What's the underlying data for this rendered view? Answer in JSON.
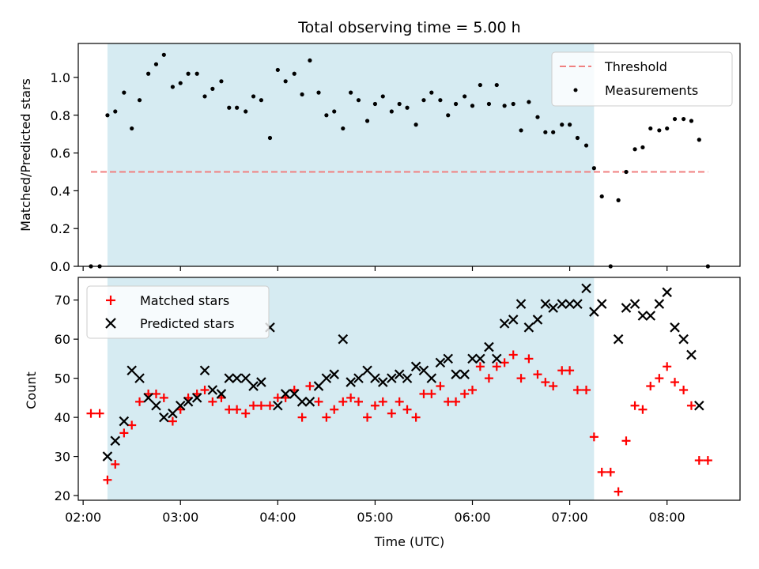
{
  "chart_data": [
    {
      "type": "scatter",
      "title": "Total observing time = 5.00 h",
      "xlabel": "",
      "ylabel": "Matched/Predicted stars",
      "x_unit": "hours UTC",
      "xlim": [
        1.95,
        8.75
      ],
      "ylim": [
        0.0,
        1.18
      ],
      "yticks": [
        0.0,
        0.2,
        0.4,
        0.6,
        0.8,
        1.0
      ],
      "ytick_labels": [
        "0.0",
        "0.2",
        "0.4",
        "0.6",
        "0.8",
        "1.0"
      ],
      "shaded_interval": {
        "x": [
          2.25,
          7.25
        ],
        "color": "#add8e6"
      },
      "threshold": {
        "name": "Threshold",
        "y": 0.5,
        "x": [
          2.08,
          8.42
        ],
        "color": "#f08080",
        "style": "dashed"
      },
      "legend": {
        "placement": "upper right",
        "entries": [
          "Threshold",
          "Measurements"
        ]
      },
      "series": [
        {
          "name": "Measurements",
          "marker": "dot",
          "color": "#000000",
          "x": [
            2.08,
            2.17,
            2.25,
            2.33,
            2.42,
            2.5,
            2.58,
            2.67,
            2.75,
            2.83,
            2.92,
            3.0,
            3.08,
            3.17,
            3.25,
            3.33,
            3.42,
            3.5,
            3.58,
            3.67,
            3.75,
            3.83,
            3.92,
            4.0,
            4.08,
            4.17,
            4.25,
            4.33,
            4.42,
            4.5,
            4.58,
            4.67,
            4.75,
            4.83,
            4.92,
            5.0,
            5.08,
            5.17,
            5.25,
            5.33,
            5.42,
            5.5,
            5.58,
            5.67,
            5.75,
            5.83,
            5.92,
            6.0,
            6.08,
            6.17,
            6.25,
            6.33,
            6.42,
            6.5,
            6.58,
            6.67,
            6.75,
            6.83,
            6.92,
            7.0,
            7.08,
            7.17,
            7.25,
            7.33,
            7.42,
            7.5,
            7.58,
            7.67,
            7.75,
            7.83,
            7.92,
            8.0,
            8.08,
            8.17,
            8.25,
            8.33,
            8.42
          ],
          "y": [
            0.0,
            0.0,
            0.8,
            0.82,
            0.92,
            0.73,
            0.88,
            1.02,
            1.07,
            1.12,
            0.95,
            0.97,
            1.02,
            1.02,
            0.9,
            0.94,
            0.98,
            0.84,
            0.84,
            0.82,
            0.9,
            0.88,
            0.68,
            1.04,
            0.98,
            1.02,
            0.91,
            1.09,
            0.92,
            0.8,
            0.82,
            0.73,
            0.92,
            0.88,
            0.77,
            0.86,
            0.9,
            0.82,
            0.86,
            0.84,
            0.75,
            0.88,
            0.92,
            0.88,
            0.8,
            0.86,
            0.9,
            0.85,
            0.96,
            0.86,
            0.96,
            0.85,
            0.86,
            0.72,
            0.87,
            0.79,
            0.71,
            0.71,
            0.75,
            0.75,
            0.68,
            0.64,
            0.52,
            0.37,
            0.0,
            0.35,
            0.5,
            0.62,
            0.63,
            0.73,
            0.72,
            0.73,
            0.78,
            0.78,
            0.77,
            0.67,
            0.0
          ]
        }
      ]
    },
    {
      "type": "scatter",
      "title": "",
      "xlabel": "Time (UTC)",
      "ylabel": "Count",
      "x_unit": "hours UTC",
      "xlim": [
        1.95,
        8.75
      ],
      "ylim": [
        18.8,
        75.8
      ],
      "xticks": [
        2,
        3,
        4,
        5,
        6,
        7,
        8
      ],
      "xtick_labels": [
        "02:00",
        "03:00",
        "04:00",
        "05:00",
        "06:00",
        "07:00",
        "08:00"
      ],
      "yticks": [
        20,
        30,
        40,
        50,
        60,
        70
      ],
      "ytick_labels": [
        "20",
        "30",
        "40",
        "50",
        "60",
        "70"
      ],
      "shaded_interval": {
        "x": [
          2.25,
          7.25
        ],
        "color": "#add8e6"
      },
      "legend": {
        "placement": "upper left",
        "entries": [
          "Matched stars",
          "Predicted stars"
        ]
      },
      "series": [
        {
          "name": "Matched stars",
          "marker": "plus",
          "color": "#ff0000",
          "x": [
            2.08,
            2.17,
            2.25,
            2.33,
            2.42,
            2.5,
            2.58,
            2.67,
            2.75,
            2.83,
            2.92,
            3.0,
            3.08,
            3.17,
            3.25,
            3.33,
            3.42,
            3.5,
            3.58,
            3.67,
            3.75,
            3.83,
            3.92,
            4.0,
            4.08,
            4.17,
            4.25,
            4.33,
            4.42,
            4.5,
            4.58,
            4.67,
            4.75,
            4.83,
            4.92,
            5.0,
            5.08,
            5.17,
            5.25,
            5.33,
            5.42,
            5.5,
            5.58,
            5.67,
            5.75,
            5.83,
            5.92,
            6.0,
            6.08,
            6.17,
            6.25,
            6.33,
            6.42,
            6.5,
            6.58,
            6.67,
            6.75,
            6.83,
            6.92,
            7.0,
            7.08,
            7.17,
            7.25,
            7.33,
            7.42,
            7.5,
            7.58,
            7.67,
            7.75,
            7.83,
            7.92,
            8.0,
            8.08,
            8.17,
            8.25,
            8.33,
            8.42
          ],
          "y": [
            41,
            41,
            24,
            28,
            36,
            38,
            44,
            46,
            46,
            45,
            39,
            42,
            45,
            46,
            47,
            44,
            45,
            42,
            42,
            41,
            43,
            43,
            43,
            45,
            45,
            47,
            40,
            48,
            44,
            40,
            42,
            44,
            45,
            44,
            40,
            43,
            44,
            41,
            44,
            42,
            40,
            46,
            46,
            48,
            44,
            44,
            46,
            47,
            53,
            50,
            53,
            54,
            56,
            50,
            55,
            51,
            49,
            48,
            52,
            52,
            47,
            47,
            35,
            26,
            26,
            21,
            34,
            43,
            42,
            48,
            50,
            53,
            49,
            47,
            43,
            29,
            29
          ]
        },
        {
          "name": "Predicted stars",
          "marker": "x",
          "color": "#000000",
          "x": [
            2.25,
            2.33,
            2.42,
            2.5,
            2.58,
            2.67,
            2.75,
            2.83,
            2.92,
            3.0,
            3.08,
            3.17,
            3.25,
            3.33,
            3.42,
            3.5,
            3.58,
            3.67,
            3.75,
            3.83,
            3.92,
            4.0,
            4.08,
            4.17,
            4.25,
            4.33,
            4.42,
            4.5,
            4.58,
            4.67,
            4.75,
            4.83,
            4.92,
            5.0,
            5.08,
            5.17,
            5.25,
            5.33,
            5.42,
            5.5,
            5.58,
            5.67,
            5.75,
            5.83,
            5.92,
            6.0,
            6.08,
            6.17,
            6.25,
            6.33,
            6.42,
            6.5,
            6.58,
            6.67,
            6.75,
            6.83,
            6.92,
            7.0,
            7.08,
            7.17,
            7.25,
            7.33,
            7.5,
            7.58,
            7.67,
            7.75,
            7.83,
            7.92,
            8.0,
            8.08,
            8.17,
            8.25,
            8.33
          ],
          "y": [
            30,
            34,
            39,
            52,
            50,
            45,
            43,
            40,
            41,
            43,
            44,
            45,
            52,
            47,
            46,
            50,
            50,
            50,
            48,
            49,
            63,
            43,
            46,
            46,
            44,
            44,
            48,
            50,
            51,
            60,
            49,
            50,
            52,
            50,
            49,
            50,
            51,
            50,
            53,
            52,
            50,
            54,
            55,
            51,
            51,
            55,
            55,
            58,
            55,
            64,
            65,
            69,
            63,
            65,
            69,
            68,
            69,
            69,
            69,
            73,
            67,
            69,
            60,
            68,
            69,
            66,
            66,
            69,
            72,
            63,
            60,
            56,
            43
          ]
        }
      ]
    }
  ]
}
